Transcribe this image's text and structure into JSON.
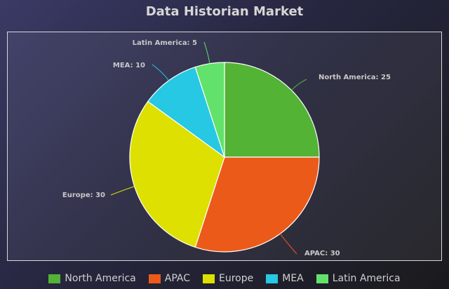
{
  "chart_data": {
    "type": "pie",
    "title": "Data Historian Market",
    "categories": [
      "North America",
      "APAC",
      "Europe",
      "MEA",
      "Latin America"
    ],
    "values": [
      25,
      30,
      30,
      10,
      5
    ],
    "data_labels": [
      "North America: 25",
      "APAC: 30",
      "Europe: 30",
      "MEA: 10",
      "Latin America: 5"
    ],
    "colors": [
      "#52b334",
      "#ec5a19",
      "#dde000",
      "#26c8e3",
      "#62e26a"
    ],
    "legend_position": "bottom",
    "start_angle": "12 o'clock",
    "direction": "clockwise"
  }
}
